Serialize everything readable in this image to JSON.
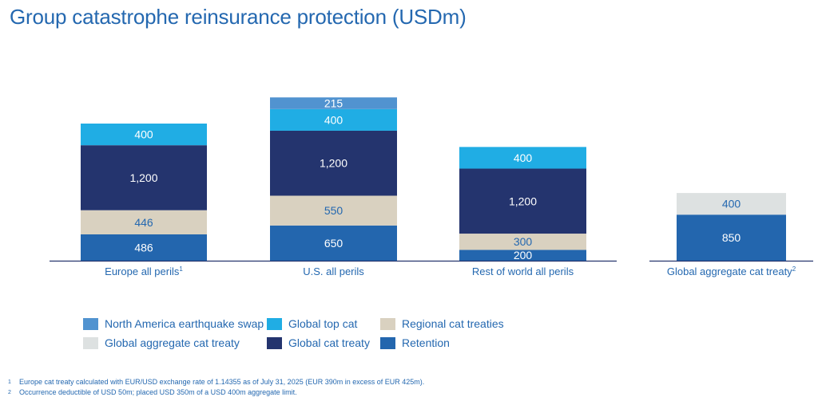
{
  "title": "Group catastrophe reinsurance protection (USDm)",
  "chart_data": {
    "type": "bar",
    "stacked": true,
    "title": "Group catastrophe reinsurance protection (USDm)",
    "xlabel": "",
    "ylabel": "",
    "unit": "USDm",
    "grid": false,
    "legend_position": "bottom-left",
    "categories": [
      {
        "label": "Europe all perils",
        "sup": "1"
      },
      {
        "label": "U.S. all perils",
        "sup": ""
      },
      {
        "label": "Rest of world all perils",
        "sup": ""
      },
      {
        "label": "Global aggregate cat treaty",
        "sup": "2"
      }
    ],
    "series": [
      {
        "name": "Retention",
        "color": "#2366ae",
        "label_color": "#ffffff",
        "values": [
          486,
          650,
          200,
          850
        ],
        "labels": [
          "486",
          "650",
          "200",
          "850"
        ]
      },
      {
        "name": "Regional cat treaties",
        "color": "#d9d1c0",
        "label_color": "#2468b0",
        "values": [
          446,
          550,
          300,
          null
        ],
        "labels": [
          "446",
          "550",
          "300",
          ""
        ]
      },
      {
        "name": "Global cat treaty",
        "color": "#24346e",
        "label_color": "#ffffff",
        "values": [
          1200,
          1200,
          1200,
          null
        ],
        "labels": [
          "1,200",
          "1,200",
          "1,200",
          ""
        ]
      },
      {
        "name": "Global top cat",
        "color": "#20ade4",
        "label_color": "#ffffff",
        "values": [
          400,
          400,
          400,
          null
        ],
        "labels": [
          "400",
          "400",
          "400",
          ""
        ]
      },
      {
        "name": "North America earthquake swap",
        "color": "#5193d0",
        "label_color": "#ffffff",
        "values": [
          null,
          215,
          null,
          null
        ],
        "labels": [
          "",
          "215",
          "",
          ""
        ]
      },
      {
        "name": "Global aggregate cat treaty",
        "color": "#dde1e1",
        "label_color": "#2468b0",
        "values": [
          null,
          null,
          null,
          400
        ],
        "labels": [
          "",
          "",
          "",
          "400"
        ]
      }
    ],
    "axis_color": "#24346e",
    "label_color": "#2468b0"
  },
  "legend": [
    {
      "name": "North America earthquake swap",
      "color": "#5193d0"
    },
    {
      "name": "Global top cat",
      "color": "#20ade4"
    },
    {
      "name": "Regional cat treaties",
      "color": "#d9d1c0"
    },
    {
      "name": "Global aggregate cat treaty",
      "color": "#dde1e1"
    },
    {
      "name": "Global cat treaty",
      "color": "#24346e"
    },
    {
      "name": "Retention",
      "color": "#2366ae"
    }
  ],
  "footnotes": [
    {
      "num": "1",
      "text": "Europe cat treaty calculated with EUR/USD exchange rate of 1.14355 as of July 31, 2025 (EUR 390m in excess of EUR 425m)."
    },
    {
      "num": "2",
      "text": "Occurrence deductible of USD 50m; placed USD 350m of a USD 400m aggregate limit."
    }
  ]
}
